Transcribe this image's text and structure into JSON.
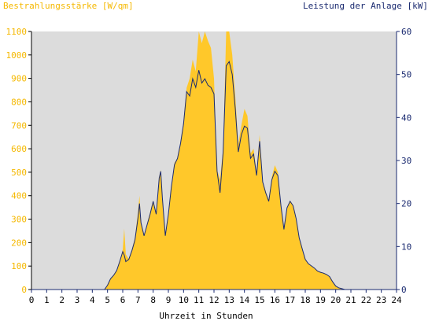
{
  "chart_data": {
    "type": "area",
    "title_left": "Bestrahlungsstärke [W/qm]",
    "title_right": "Leistung der Anlage [kW]",
    "xlabel": "Uhrzeit in Stunden",
    "x_ticks": [
      "0",
      "1",
      "2",
      "3",
      "4",
      "5",
      "6",
      "7",
      "8",
      "9",
      "10",
      "11",
      "12",
      "13",
      "14",
      "15",
      "16",
      "17",
      "18",
      "19",
      "20",
      "21",
      "22",
      "23",
      "24"
    ],
    "y_left_ticks": [
      "0",
      "100",
      "200",
      "300",
      "400",
      "500",
      "600",
      "700",
      "800",
      "900",
      "1000",
      "1100"
    ],
    "y_right_ticks": [
      "0",
      "10",
      "20",
      "30",
      "40",
      "50",
      "60"
    ],
    "xlim": [
      0,
      24
    ],
    "ylim_left": [
      0,
      1100
    ],
    "ylim_right": [
      0,
      60
    ],
    "grid": false,
    "colors": {
      "irradiance_fill": "#ffc82a",
      "power_line": "#1a2a70",
      "plot_background": "#dcdcdc",
      "left_axis_text": "#f5b800",
      "right_axis_text": "#1a2a70"
    },
    "series": [
      {
        "unit_axis": "left",
        "style": "filled-area",
        "x": [
          0,
          4.8,
          5.0,
          5.2,
          5.4,
          5.6,
          5.8,
          6.0,
          6.1,
          6.2,
          6.4,
          6.6,
          6.8,
          7.0,
          7.1,
          7.2,
          7.4,
          7.6,
          7.8,
          8.0,
          8.2,
          8.4,
          8.5,
          8.6,
          8.8,
          9.0,
          9.2,
          9.4,
          9.6,
          9.8,
          10.0,
          10.2,
          10.4,
          10.6,
          10.8,
          11.0,
          11.2,
          11.4,
          11.6,
          11.8,
          12.0,
          12.2,
          12.4,
          12.6,
          12.8,
          13.0,
          13.2,
          13.4,
          13.6,
          13.8,
          14.0,
          14.2,
          14.4,
          14.6,
          14.8,
          15.0,
          15.2,
          15.4,
          15.6,
          15.8,
          16.0,
          16.2,
          16.4,
          16.6,
          16.8,
          17.0,
          17.2,
          17.4,
          17.6,
          17.8,
          18.0,
          18.2,
          18.4,
          18.6,
          18.8,
          19.0,
          19.2,
          19.4,
          19.6,
          19.8,
          20.0,
          20.2,
          20.4,
          20.6,
          21.0,
          24
        ],
        "y": [
          0,
          0,
          20,
          45,
          60,
          80,
          120,
          170,
          260,
          150,
          130,
          170,
          220,
          330,
          400,
          290,
          230,
          280,
          330,
          380,
          320,
          480,
          510,
          400,
          230,
          320,
          440,
          540,
          560,
          620,
          720,
          860,
          900,
          980,
          930,
          1100,
          1050,
          1120,
          1060,
          1030,
          900,
          510,
          470,
          600,
          1100,
          1110,
          1000,
          820,
          620,
          700,
          770,
          740,
          580,
          600,
          500,
          660,
          460,
          420,
          380,
          480,
          530,
          500,
          360,
          260,
          350,
          380,
          360,
          300,
          220,
          170,
          130,
          110,
          100,
          90,
          80,
          75,
          70,
          65,
          55,
          35,
          15,
          8,
          3,
          0,
          0,
          0
        ],
        "values_per_hour": [
          0,
          0,
          0,
          0,
          0,
          20,
          170,
          330,
          380,
          320,
          720,
          1100,
          900,
          1110,
          770,
          660,
          530,
          380,
          130,
          75,
          15,
          0,
          0,
          0,
          0
        ]
      },
      {
        "unit_axis": "right",
        "style": "line",
        "x": [
          0,
          4.8,
          5.0,
          5.2,
          5.4,
          5.6,
          5.8,
          6.0,
          6.1,
          6.2,
          6.4,
          6.6,
          6.8,
          7.0,
          7.1,
          7.2,
          7.4,
          7.6,
          7.8,
          8.0,
          8.2,
          8.4,
          8.5,
          8.6,
          8.8,
          9.0,
          9.2,
          9.4,
          9.6,
          9.8,
          10.0,
          10.2,
          10.4,
          10.6,
          10.8,
          11.0,
          11.2,
          11.4,
          11.6,
          11.8,
          12.0,
          12.2,
          12.4,
          12.6,
          12.8,
          13.0,
          13.2,
          13.4,
          13.6,
          13.8,
          14.0,
          14.2,
          14.4,
          14.6,
          14.8,
          15.0,
          15.2,
          15.4,
          15.6,
          15.8,
          16.0,
          16.2,
          16.4,
          16.6,
          16.8,
          17.0,
          17.2,
          17.4,
          17.6,
          17.8,
          18.0,
          18.2,
          18.4,
          18.6,
          18.8,
          19.0,
          19.2,
          19.4,
          19.6,
          19.8,
          20.0,
          20.2,
          20.4,
          20.6,
          21.0,
          24
        ],
        "y": [
          0,
          0,
          1,
          2.5,
          3.3,
          4.4,
          6.5,
          8.8,
          8.0,
          6.5,
          7.0,
          9.0,
          11.5,
          16.5,
          20.0,
          15.5,
          12.5,
          15.0,
          17.5,
          20.5,
          17.5,
          26.0,
          27.5,
          21.5,
          12.5,
          17.5,
          24.0,
          29.0,
          30.5,
          34.0,
          38.5,
          46.0,
          45.0,
          49.0,
          47.0,
          51.0,
          48.0,
          49.0,
          47.5,
          47.0,
          45.5,
          27.5,
          22.5,
          32.0,
          52.0,
          53.0,
          50.0,
          42.0,
          32.0,
          36.0,
          38.0,
          37.5,
          30.5,
          31.5,
          26.5,
          34.5,
          25.0,
          22.5,
          20.5,
          25.5,
          27.5,
          26.5,
          19.5,
          14.0,
          19.0,
          20.5,
          19.5,
          16.5,
          12.0,
          9.5,
          7.0,
          6.0,
          5.5,
          5.0,
          4.3,
          4.0,
          3.8,
          3.5,
          3.0,
          1.8,
          0.8,
          0.4,
          0.2,
          0,
          0,
          0
        ],
        "values_per_hour": [
          0,
          0,
          0,
          0,
          0,
          1,
          8.8,
          16.5,
          20.5,
          17.5,
          38.5,
          51,
          45.5,
          53,
          38,
          34.5,
          27.5,
          20.5,
          7,
          4,
          0.8,
          0,
          0,
          0,
          0
        ]
      }
    ]
  }
}
